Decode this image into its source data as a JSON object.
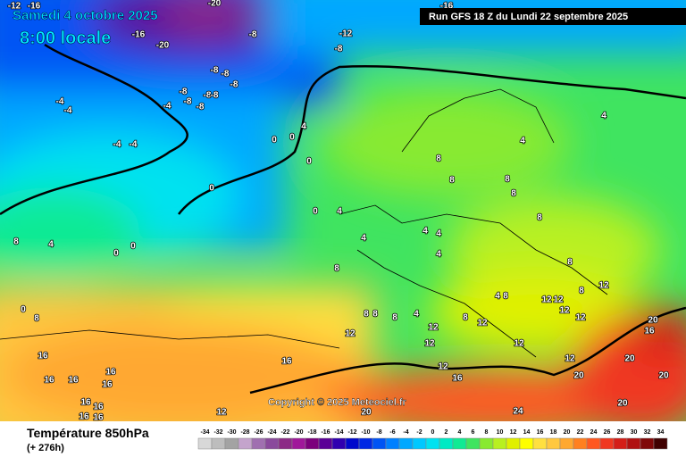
{
  "header": {
    "date": "Samedi 4 octobre 2025",
    "time": "8:00 locale",
    "run": "Run GFS 18 Z du Lundi 22 septembre 2025"
  },
  "footer": {
    "title": "Température 850hPa",
    "lead": "(+ 276h)",
    "copyright": "Copyright © 2025 Meteociel.fr"
  },
  "legend": {
    "values": [
      -34,
      -32,
      -30,
      -28,
      -26,
      -24,
      -22,
      -20,
      -18,
      -16,
      -14,
      -12,
      -10,
      -8,
      -6,
      -4,
      -2,
      0,
      2,
      4,
      6,
      8,
      10,
      12,
      14,
      16,
      18,
      20,
      22,
      24,
      26,
      28,
      30,
      32,
      34
    ],
    "colors": [
      "#d8d8d8",
      "#bdbdbd",
      "#a3a3a3",
      "#c4a4cc",
      "#a070b0",
      "#8a4a9c",
      "#8c2a86",
      "#a0189a",
      "#7c007c",
      "#5a0096",
      "#3000b0",
      "#0008cc",
      "#0028e4",
      "#0054f4",
      "#0080ff",
      "#00a8ff",
      "#00c8ff",
      "#00e2f0",
      "#00eac4",
      "#10ea94",
      "#40e460",
      "#88ea30",
      "#b8f020",
      "#e0f000",
      "#ffff00",
      "#ffe040",
      "#ffc840",
      "#ffa830",
      "#ff8020",
      "#ff5820",
      "#f03820",
      "#d41e18",
      "#b01010",
      "#800808",
      "#400000"
    ]
  },
  "map_labels": [
    -12,
    -16,
    -20,
    -16,
    -16,
    -20,
    -8,
    -12,
    -8,
    -8,
    -8,
    -8,
    -8,
    -8,
    -8,
    -8,
    -4,
    -4,
    -4,
    -8,
    4,
    0,
    0,
    -4,
    -4,
    0,
    0,
    4,
    4,
    8,
    8,
    8,
    8,
    0,
    4,
    8,
    8,
    4,
    0,
    0,
    4,
    4,
    4,
    4,
    8,
    8,
    12,
    0,
    8,
    8,
    8,
    8,
    4,
    12,
    12,
    8,
    4,
    8,
    12,
    12,
    8,
    12,
    20,
    16,
    12,
    12,
    12,
    12,
    16,
    12,
    20,
    16,
    12,
    16,
    16,
    16,
    16,
    16,
    20,
    20,
    16,
    20,
    16,
    16,
    16,
    12,
    24,
    20
  ]
}
